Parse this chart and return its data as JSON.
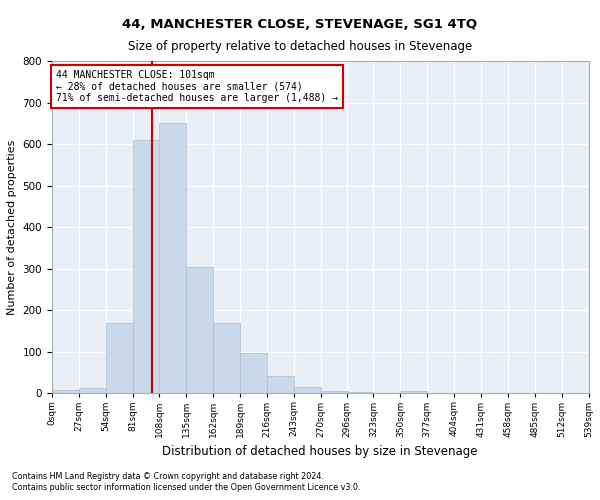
{
  "title": "44, MANCHESTER CLOSE, STEVENAGE, SG1 4TQ",
  "subtitle": "Size of property relative to detached houses in Stevenage",
  "xlabel": "Distribution of detached houses by size in Stevenage",
  "ylabel": "Number of detached properties",
  "bar_color": "#c9d9ea",
  "bar_edge_color": "#aabfcf",
  "background_color": "#eaeff7",
  "grid_color": "#ffffff",
  "property_line_color": "#cc0000",
  "property_line_x": 101,
  "annotation_text": "44 MANCHESTER CLOSE: 101sqm\n← 28% of detached houses are smaller (574)\n71% of semi-detached houses are larger (1,488) →",
  "annotation_box_color": "#ffffff",
  "annotation_box_edge_color": "#cc0000",
  "footnote1": "Contains HM Land Registry data © Crown copyright and database right 2024.",
  "footnote2": "Contains public sector information licensed under the Open Government Licence v3.0.",
  "bin_edges": [
    0,
    27,
    54,
    81,
    108,
    135,
    162,
    189,
    216,
    243,
    270,
    296,
    323,
    350,
    377,
    404,
    431,
    458,
    485,
    512,
    539
  ],
  "bin_labels": [
    "0sqm",
    "27sqm",
    "54sqm",
    "81sqm",
    "108sqm",
    "135sqm",
    "162sqm",
    "189sqm",
    "216sqm",
    "243sqm",
    "270sqm",
    "296sqm",
    "323sqm",
    "350sqm",
    "377sqm",
    "404sqm",
    "431sqm",
    "458sqm",
    "485sqm",
    "512sqm",
    "539sqm"
  ],
  "bar_heights": [
    7,
    12,
    170,
    610,
    650,
    305,
    170,
    97,
    42,
    15,
    5,
    3,
    0,
    5,
    0,
    0,
    0,
    0,
    0,
    0
  ],
  "ylim": [
    0,
    800
  ],
  "yticks": [
    0,
    100,
    200,
    300,
    400,
    500,
    600,
    700,
    800
  ]
}
